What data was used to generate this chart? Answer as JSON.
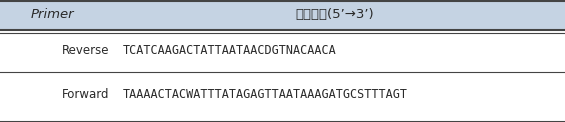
{
  "header_col1": "Primer",
  "header_col2": "염기서열(5’→3’)",
  "rows": [
    {
      "col1": "Reverse",
      "col2": "TCATCAAGACTATTAATAACDGTNACAACA"
    },
    {
      "col1": "Forward",
      "col2": "TAAAACTACWATTTATAGAGTTAATAAAGATGCSTTTAGT"
    }
  ],
  "header_bg": "#c5d3e3",
  "bg_color": "#ffffff",
  "text_color": "#2a2a2a",
  "header_fontsize": 9.5,
  "cell_fontsize": 8.5,
  "border_color": "#444444"
}
